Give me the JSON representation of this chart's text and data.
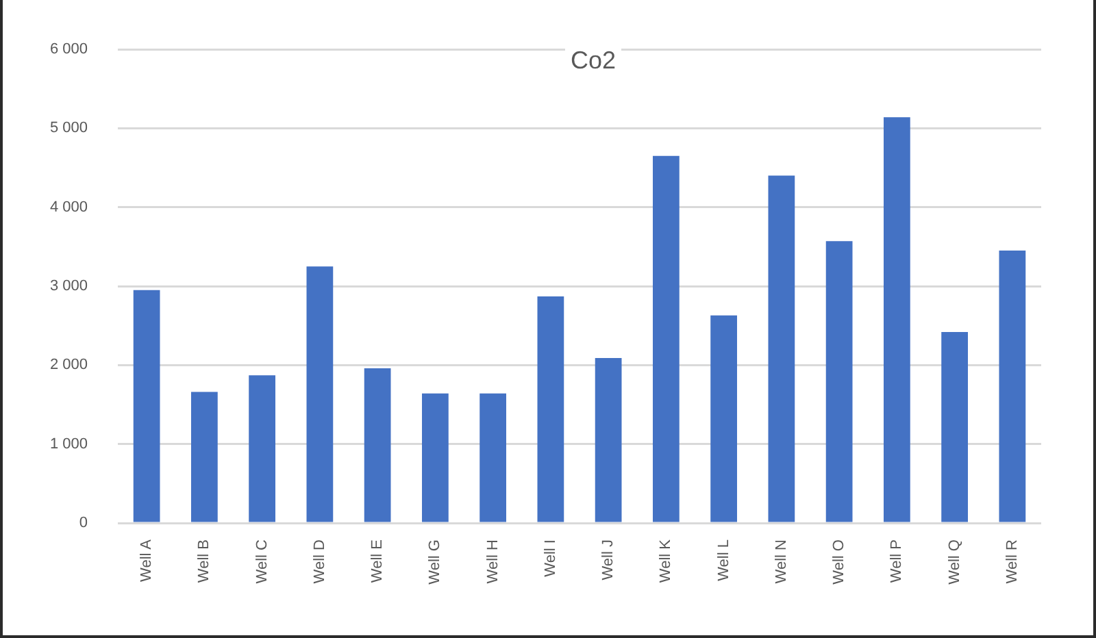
{
  "chart_data": {
    "type": "bar",
    "title": "Co2",
    "categories": [
      "Well A",
      "Well B",
      "Well C",
      "Well D",
      "Well E",
      "Well G",
      "Well H",
      "Well I",
      "Well J",
      "Well K",
      "Well L",
      "Well N",
      "Well O",
      "Well P",
      "Well Q",
      "Well R"
    ],
    "values": [
      2950,
      1660,
      1870,
      3250,
      1960,
      1640,
      1640,
      2870,
      2090,
      4650,
      2630,
      4400,
      3570,
      5140,
      2420,
      3450
    ],
    "color": "#4472c4",
    "ylim": [
      0,
      6000
    ],
    "yticks": [
      0,
      {
        "value": 1000,
        "label": "1 000"
      },
      {
        "value": 2000,
        "label": "2 000"
      },
      {
        "value": 3000,
        "label": "3 000"
      },
      {
        "value": 4000,
        "label": "4 000"
      },
      {
        "value": 5000,
        "label": "5 000"
      },
      {
        "value": 6000,
        "label": "6 000"
      }
    ],
    "grid": "y"
  }
}
